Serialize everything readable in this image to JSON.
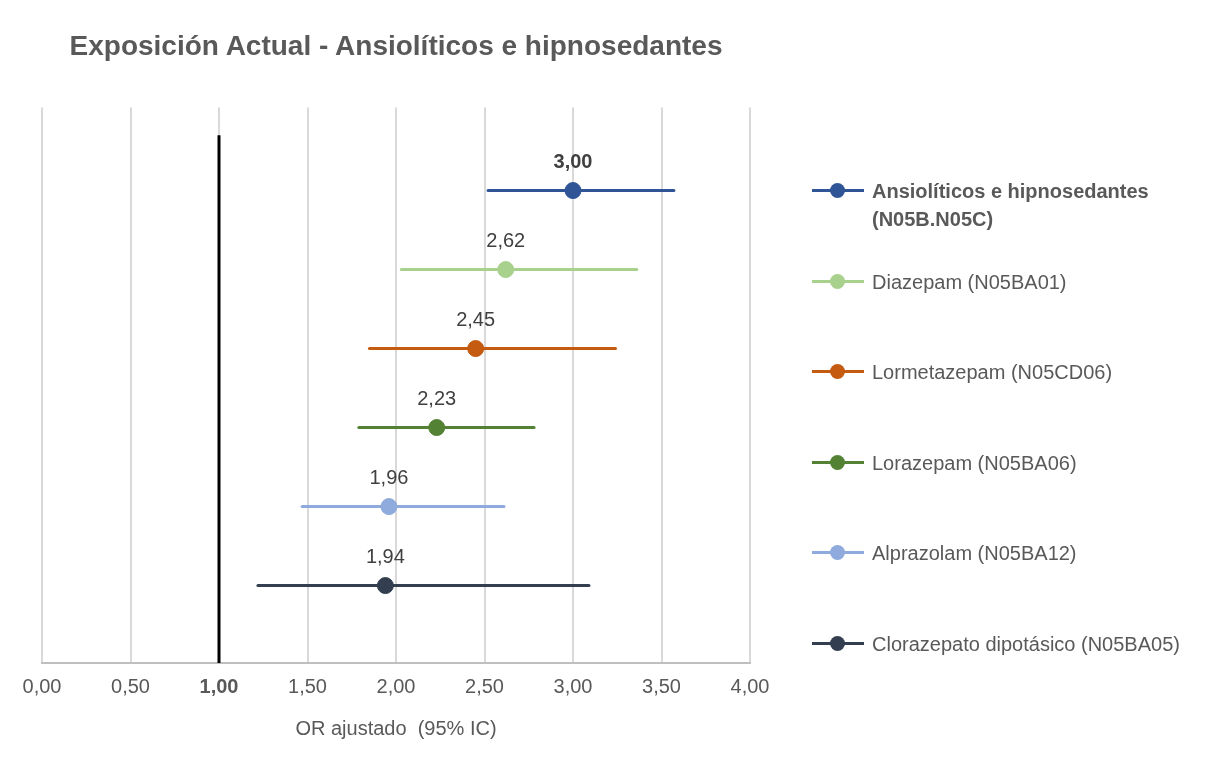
{
  "chart_data": {
    "type": "scatter",
    "orientation": "horizontal",
    "title": "Exposición Actual - Ansiolíticos e hipnosedantes",
    "xlabel": "OR ajustado  (95% IC)",
    "categories": [
      null,
      null,
      null,
      null,
      null,
      null
    ],
    "xlim": [
      0,
      4
    ],
    "xticks": [
      {
        "value": 0,
        "label": "0,00"
      },
      {
        "value": 0.5,
        "label": "0,50"
      },
      {
        "value": 1,
        "label": "1,00"
      },
      {
        "value": 1.5,
        "label": "1,50"
      },
      {
        "value": 2,
        "label": "2,00"
      },
      {
        "value": 2.5,
        "label": "2,50"
      },
      {
        "value": 3,
        "label": "3,00"
      },
      {
        "value": 3.5,
        "label": "3,50"
      },
      {
        "value": 4,
        "label": "4,00"
      }
    ],
    "grid": "x",
    "legend": "right",
    "marker": "circle",
    "ref_lines": [
      {
        "axis": "x",
        "value": 1,
        "color": "#000000"
      }
    ],
    "series": [
      {
        "name": "Ansiolíticos e hipnosedantes (N05B.N05C)",
        "color": "#2f5597",
        "values": [
          3.0,
          null,
          null,
          null,
          null,
          null
        ],
        "errors": [
          [
            2.52,
            3.57
          ],
          null,
          null,
          null,
          null,
          null
        ],
        "value_labels": [
          "3,00",
          null,
          null,
          null,
          null,
          null
        ]
      },
      {
        "name": "Diazepam (N05BA01)",
        "color": "#a9d18e",
        "values": [
          null,
          2.62,
          null,
          null,
          null,
          null
        ],
        "errors": [
          null,
          [
            2.03,
            3.36
          ],
          null,
          null,
          null,
          null
        ],
        "value_labels": [
          null,
          "2,62",
          null,
          null,
          null,
          null
        ]
      },
      {
        "name": "Lormetazepam (N05CD06)",
        "color": "#c55a11",
        "values": [
          null,
          null,
          2.45,
          null,
          null,
          null
        ],
        "errors": [
          null,
          null,
          [
            1.85,
            3.24
          ],
          null,
          null,
          null
        ],
        "value_labels": [
          null,
          null,
          "2,45",
          null,
          null,
          null
        ]
      },
      {
        "name": "Lorazepam (N05BA06)",
        "color": "#548235",
        "values": [
          null,
          null,
          null,
          2.23,
          null,
          null
        ],
        "errors": [
          null,
          null,
          null,
          [
            1.79,
            2.78
          ],
          null,
          null
        ],
        "value_labels": [
          null,
          null,
          null,
          "2,23",
          null,
          null
        ]
      },
      {
        "name": "Alprazolam (N05BA12)",
        "color": "#8faadc",
        "values": [
          null,
          null,
          null,
          null,
          1.96,
          null
        ],
        "errors": [
          null,
          null,
          null,
          null,
          [
            1.47,
            2.61
          ],
          null
        ],
        "value_labels": [
          null,
          null,
          null,
          null,
          "1,96",
          null
        ]
      },
      {
        "name": "Clorazepato dipotásico (N05BA05)",
        "color": "#333f50",
        "values": [
          null,
          null,
          null,
          null,
          null,
          1.94
        ],
        "errors": [
          null,
          null,
          null,
          null,
          null,
          [
            1.22,
            3.09
          ]
        ],
        "value_labels": [
          null,
          null,
          null,
          null,
          null,
          "1,94"
        ]
      }
    ]
  }
}
